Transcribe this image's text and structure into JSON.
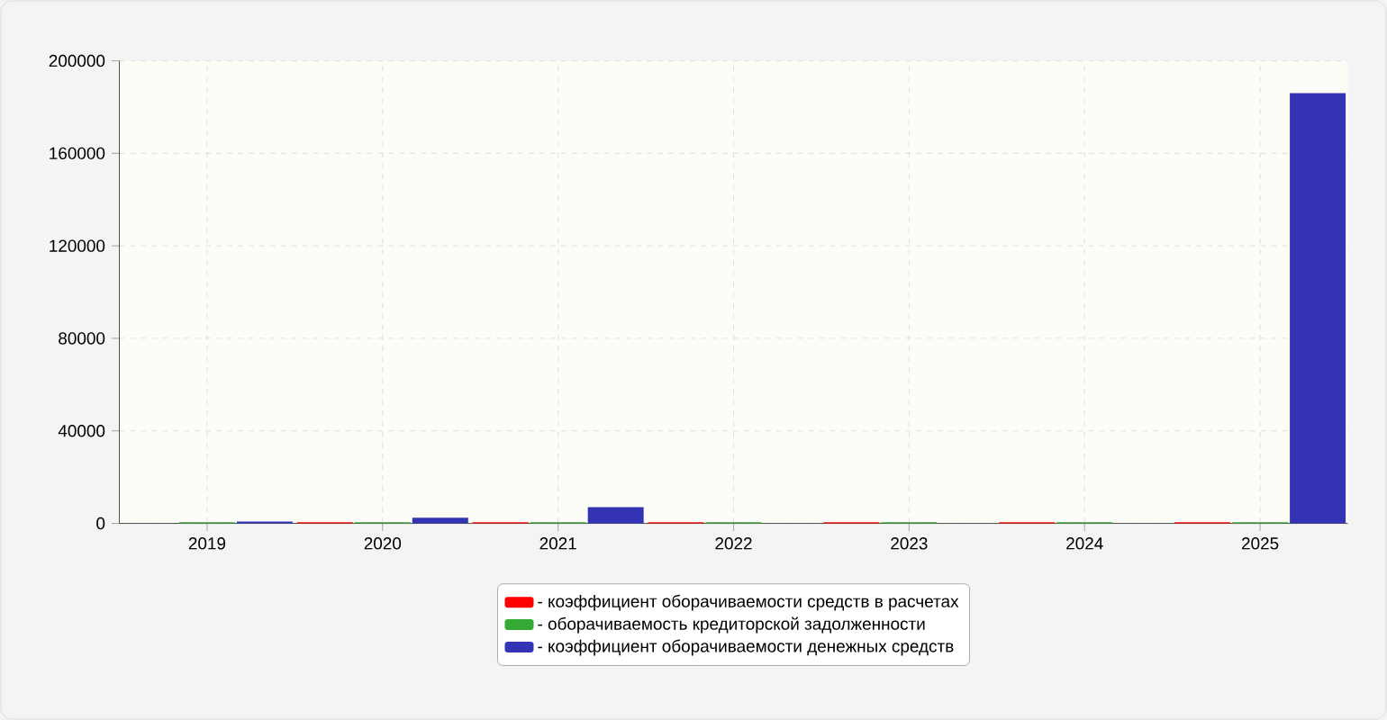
{
  "chart_data": {
    "type": "bar",
    "categories": [
      "2019",
      "2020",
      "2021",
      "2022",
      "2023",
      "2024",
      "2025"
    ],
    "series": [
      {
        "name": "- коэффициент оборачиваемости средств в расчетах",
        "color": "#ff0000",
        "values": [
          0,
          500,
          500,
          500,
          500,
          500,
          500
        ]
      },
      {
        "name": "- оборачиваемость кредиторской задолженности",
        "color": "#33aa33",
        "values": [
          500,
          500,
          500,
          500,
          500,
          500,
          500
        ]
      },
      {
        "name": "- коэффициент оборачиваемости денежных средств",
        "color": "#3333b3",
        "values": [
          800,
          2500,
          7000,
          0,
          0,
          0,
          186000
        ]
      }
    ],
    "ylim": [
      0,
      200000
    ],
    "yticks": [
      0,
      40000,
      80000,
      120000,
      160000,
      200000
    ],
    "grid": true,
    "legend": "bottom"
  }
}
